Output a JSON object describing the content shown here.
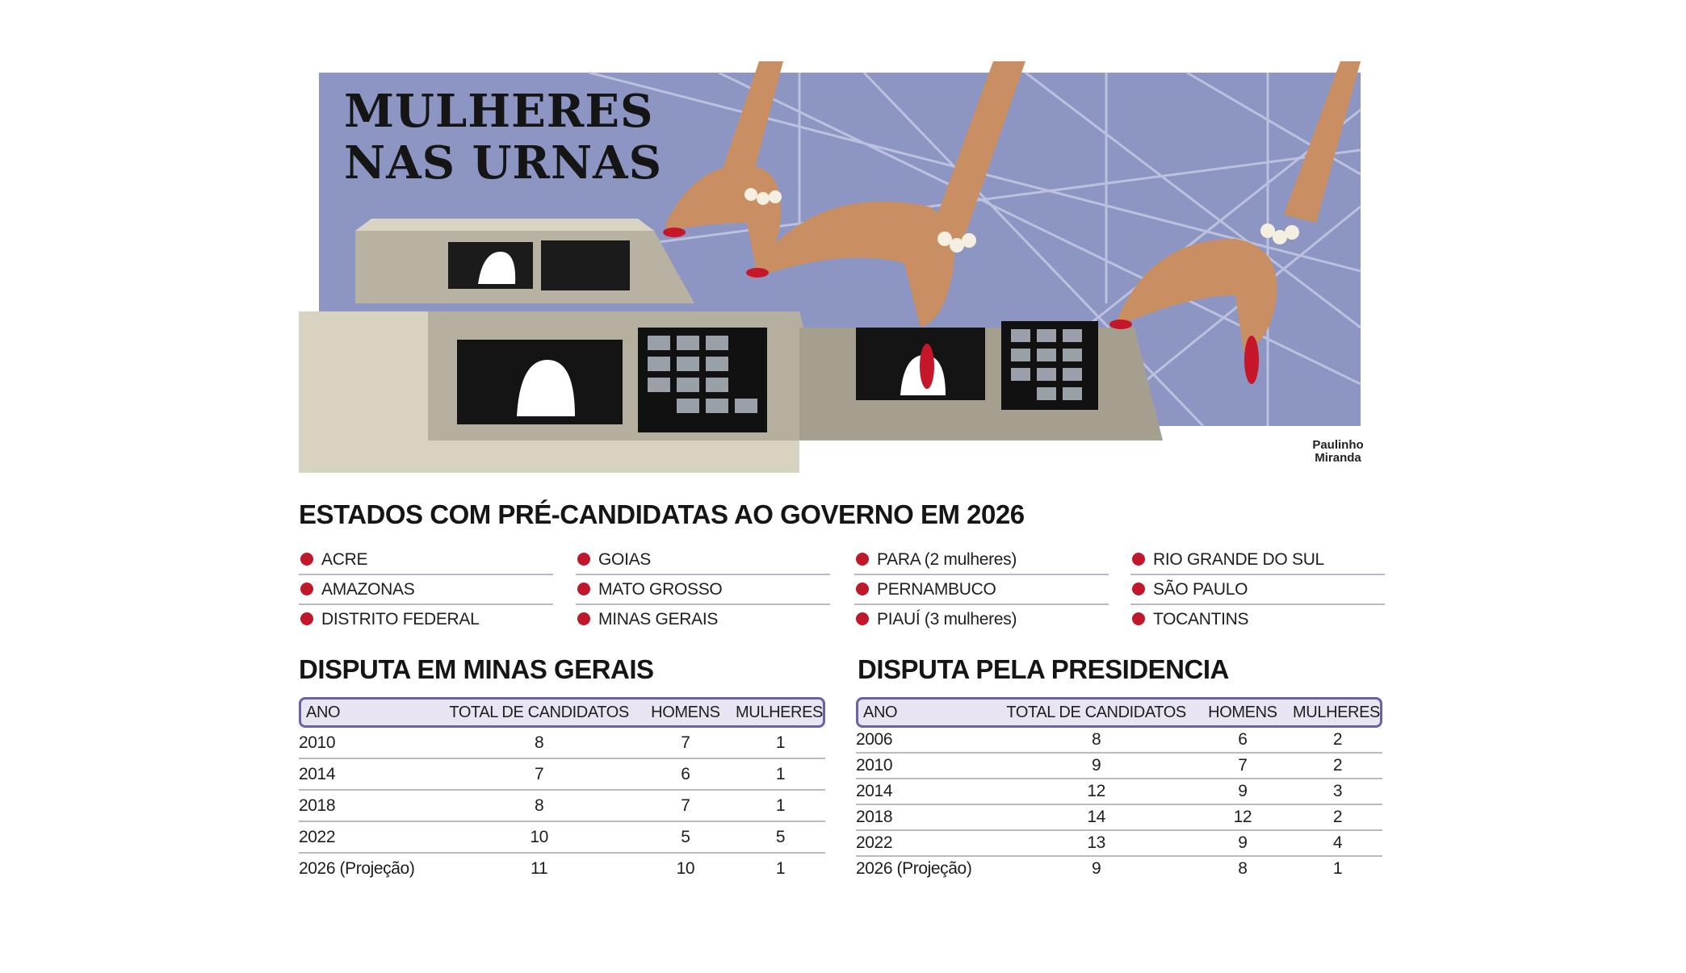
{
  "title": "MULHERES NAS URNAS",
  "credit": "Paulinho Miranda",
  "colors": {
    "bullet": "#c0182a",
    "table_border": "#6a62a2",
    "table_header_bg": "#e9e4f1"
  },
  "states": {
    "title": "ESTADOS COM PRÉ-CANDIDATAS AO GOVERNO EM 2026",
    "columns": [
      [
        "ACRE",
        "AMAZONAS",
        "DISTRITO FEDERAL"
      ],
      [
        "GOIAS",
        "MATO GROSSO",
        "MINAS GERAIS"
      ],
      [
        "PARA (2 mulheres)",
        "PERNAMBUCO",
        "PIAUÍ (3 mulheres)"
      ],
      [
        "RIO GRANDE DO SUL",
        "SÃO PAULO",
        "TOCANTINS"
      ]
    ]
  },
  "minas": {
    "title": "DISPUTA EM MINAS GERAIS",
    "headers": [
      "ANO",
      "TOTAL DE CANDIDATOS",
      "HOMENS",
      "MULHERES"
    ],
    "rows": [
      [
        "2010",
        "8",
        "7",
        "1"
      ],
      [
        "2014",
        "7",
        "6",
        "1"
      ],
      [
        "2018",
        "8",
        "7",
        "1"
      ],
      [
        "2022",
        "10",
        "5",
        "5"
      ],
      [
        "2026 (Projeção)",
        "11",
        "10",
        "1"
      ]
    ]
  },
  "presidencia": {
    "title": "DISPUTA PELA PRESIDENCIA",
    "headers": [
      "ANO",
      "TOTAL DE CANDIDATOS",
      "HOMENS",
      "MULHERES"
    ],
    "rows": [
      [
        "2006",
        "8",
        "6",
        "2"
      ],
      [
        "2010",
        "9",
        "7",
        "2"
      ],
      [
        "2014",
        "12",
        "9",
        "3"
      ],
      [
        "2018",
        "14",
        "12",
        "2"
      ],
      [
        "2022",
        "13",
        "9",
        "4"
      ],
      [
        "2026 (Projeção)",
        "9",
        "8",
        "1"
      ]
    ]
  }
}
